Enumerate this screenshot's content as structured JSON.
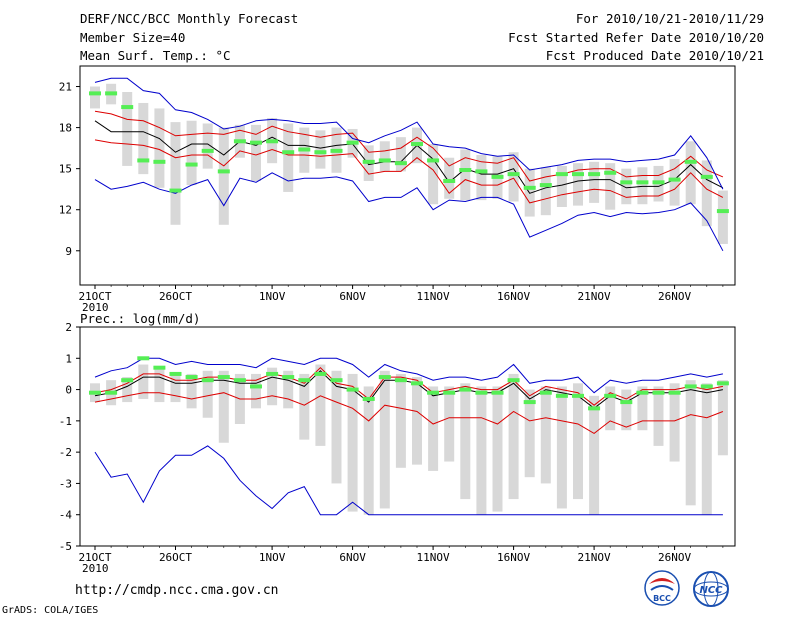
{
  "header": {
    "title": "DERF/NCC/BCC Monthly Forecast",
    "member_size": "Member Size=40",
    "variable": "Mean Surf. Temp.: °C",
    "period": "For 2010/10/21-2010/11/29",
    "start_date": "Fcst Started Refer Date 2010/10/20",
    "produced_date": "Fcst Produced Date 2010/10/21"
  },
  "footer": {
    "url": "http://cmdp.ncc.cma.gov.cn",
    "grads": "GrADS: COLA/IGES"
  },
  "logos": {
    "bcc": "BCC",
    "ncc": "NCC"
  },
  "colors": {
    "green": "#55ee55",
    "black": "#000000",
    "red": "#dd0000",
    "blue": "#0000cc",
    "box": "#d8d8d8"
  },
  "chart_data": [
    {
      "type": "line",
      "title": "Mean Surf. Temp.: °C",
      "xlabel": "",
      "ylabel": "",
      "x_ticks": [
        {
          "day": 0,
          "label": "21OCT"
        },
        {
          "day": 5,
          "label": "26OCT"
        },
        {
          "day": 11,
          "label": "1NOV"
        },
        {
          "day": 16,
          "label": "6NOV"
        },
        {
          "day": 21,
          "label": "11NOV"
        },
        {
          "day": 26,
          "label": "16NOV"
        },
        {
          "day": 31,
          "label": "21NOV"
        },
        {
          "day": 36,
          "label": "26NOV"
        }
      ],
      "year_label": "2010",
      "ylim": [
        6.5,
        22.5
      ],
      "y_ticks": [
        9,
        12,
        15,
        18,
        21
      ],
      "days": [
        0,
        1,
        2,
        3,
        4,
        5,
        6,
        7,
        8,
        9,
        10,
        11,
        12,
        13,
        14,
        15,
        16,
        17,
        18,
        19,
        20,
        21,
        22,
        23,
        24,
        25,
        26,
        27,
        28,
        29,
        30,
        31,
        32,
        33,
        34,
        35,
        36,
        37,
        38,
        39
      ],
      "series": [
        {
          "name": "ensemble mean",
          "color": "black",
          "values": [
            18.5,
            17.7,
            17.7,
            17.7,
            17.2,
            16.2,
            16.8,
            16.8,
            16.0,
            17.0,
            16.7,
            17.3,
            16.7,
            16.7,
            16.5,
            16.7,
            16.8,
            15.3,
            15.5,
            15.5,
            16.7,
            15.7,
            14.0,
            15.0,
            14.6,
            14.6,
            15.0,
            13.2,
            13.6,
            13.8,
            14.1,
            14.2,
            14.2,
            13.6,
            13.7,
            13.7,
            14.2,
            15.3,
            14.2,
            13.6
          ]
        },
        {
          "name": "upper range",
          "color": "red",
          "values": [
            19.2,
            19.0,
            18.6,
            18.5,
            18.0,
            17.4,
            17.5,
            17.6,
            17.5,
            17.8,
            17.5,
            18.1,
            17.7,
            17.5,
            17.3,
            17.5,
            17.6,
            16.2,
            16.3,
            16.5,
            17.3,
            16.5,
            15.2,
            15.8,
            15.5,
            15.4,
            15.8,
            14.1,
            14.4,
            14.6,
            14.9,
            15.0,
            15.0,
            14.4,
            14.5,
            14.5,
            15.0,
            15.9,
            14.9,
            14.4
          ]
        },
        {
          "name": "lower range",
          "color": "red",
          "values": [
            17.1,
            16.9,
            16.8,
            16.7,
            16.4,
            15.8,
            16.0,
            16.0,
            15.2,
            16.3,
            16.0,
            16.4,
            16.0,
            16.0,
            15.9,
            16.0,
            16.1,
            14.6,
            14.8,
            14.8,
            15.8,
            14.9,
            13.2,
            14.2,
            13.8,
            13.8,
            14.3,
            12.5,
            12.8,
            13.1,
            13.3,
            13.5,
            13.4,
            12.9,
            13.0,
            13.0,
            13.5,
            14.7,
            13.5,
            12.9
          ]
        },
        {
          "name": "max",
          "color": "blue",
          "values": [
            21.3,
            21.6,
            21.6,
            20.7,
            20.5,
            19.3,
            19.1,
            18.6,
            17.9,
            18.1,
            18.5,
            18.6,
            18.5,
            18.3,
            18.3,
            18.4,
            17.2,
            16.9,
            17.4,
            17.8,
            18.4,
            16.8,
            16.6,
            16.5,
            16.1,
            15.9,
            16.0,
            14.9,
            15.1,
            15.3,
            15.6,
            15.7,
            15.7,
            15.5,
            15.6,
            15.7,
            16.0,
            17.4,
            15.8,
            13.5
          ]
        },
        {
          "name": "min",
          "color": "blue",
          "values": [
            14.2,
            13.5,
            13.7,
            14.0,
            13.5,
            13.2,
            13.8,
            14.2,
            12.3,
            14.3,
            14.0,
            14.7,
            14.1,
            14.3,
            14.3,
            14.4,
            14.1,
            12.6,
            12.9,
            12.9,
            13.6,
            12.0,
            12.7,
            12.6,
            12.9,
            12.9,
            12.4,
            10.0,
            10.5,
            11.0,
            11.6,
            11.8,
            11.5,
            11.8,
            11.7,
            11.8,
            12.0,
            12.5,
            11.2,
            9.0
          ]
        },
        {
          "name": "observed",
          "color": "green",
          "values": [
            20.5,
            20.5,
            19.5,
            15.6,
            15.5,
            13.4,
            15.3,
            16.3,
            14.8,
            17.0,
            16.9,
            17.0,
            16.2,
            16.4,
            16.2,
            16.3,
            16.9,
            15.5,
            15.6,
            15.4,
            16.8,
            15.6,
            14.1,
            14.9,
            14.8,
            14.4,
            14.6,
            13.6,
            13.8,
            14.6,
            14.6,
            14.6,
            14.7,
            14.0,
            14.0,
            14.0,
            14.2,
            15.5,
            14.4,
            11.9
          ]
        }
      ],
      "box_upper": [
        21.0,
        21.2,
        20.6,
        19.8,
        19.4,
        18.4,
        18.5,
        18.3,
        18.0,
        18.2,
        18.2,
        18.7,
        18.3,
        18.0,
        17.8,
        18.0,
        17.9,
        16.7,
        17.0,
        17.3,
        18.0,
        16.8,
        15.8,
        16.4,
        16.0,
        15.9,
        16.2,
        15.0,
        15.1,
        15.2,
        15.4,
        15.5,
        15.4,
        15.0,
        15.1,
        15.2,
        15.7,
        17.0,
        15.6,
        13.4
      ],
      "box_lower": [
        19.4,
        19.7,
        15.2,
        14.6,
        13.6,
        10.9,
        13.8,
        15.0,
        10.9,
        15.8,
        14.1,
        15.4,
        13.3,
        14.7,
        15.0,
        14.7,
        15.8,
        14.1,
        14.8,
        14.8,
        15.4,
        12.4,
        12.8,
        12.7,
        12.7,
        12.8,
        12.6,
        11.5,
        11.6,
        12.2,
        12.3,
        12.5,
        12.0,
        12.4,
        12.4,
        12.6,
        12.3,
        12.4,
        10.8,
        9.5
      ]
    },
    {
      "type": "line",
      "title": "Prec.: log(mm/d)",
      "xlabel": "",
      "ylabel": "",
      "x_ticks": [
        {
          "day": 0,
          "label": "21OCT"
        },
        {
          "day": 5,
          "label": "26OCT"
        },
        {
          "day": 11,
          "label": "1NOV"
        },
        {
          "day": 16,
          "label": "6NOV"
        },
        {
          "day": 21,
          "label": "11NOV"
        },
        {
          "day": 26,
          "label": "16NOV"
        },
        {
          "day": 31,
          "label": "21NOV"
        },
        {
          "day": 36,
          "label": "26NOV"
        }
      ],
      "year_label": "2010",
      "ylim": [
        -5,
        2
      ],
      "y_ticks": [
        -5,
        -4,
        -3,
        -2,
        -1,
        0,
        1,
        2
      ],
      "days": [
        0,
        1,
        2,
        3,
        4,
        5,
        6,
        7,
        8,
        9,
        10,
        11,
        12,
        13,
        14,
        15,
        16,
        17,
        18,
        19,
        20,
        21,
        22,
        23,
        24,
        25,
        26,
        27,
        28,
        29,
        30,
        31,
        32,
        33,
        34,
        35,
        36,
        37,
        38,
        39
      ],
      "series": [
        {
          "name": "ensemble mean",
          "color": "black",
          "values": [
            -0.2,
            -0.1,
            0.1,
            0.4,
            0.4,
            0.2,
            0.2,
            0.3,
            0.3,
            0.2,
            0.2,
            0.4,
            0.3,
            0.1,
            0.6,
            0.1,
            0.0,
            -0.4,
            0.3,
            0.3,
            0.2,
            -0.2,
            -0.1,
            0.0,
            -0.1,
            -0.1,
            0.2,
            -0.3,
            0.0,
            -0.1,
            -0.2,
            -0.6,
            -0.2,
            -0.4,
            -0.1,
            -0.1,
            -0.1,
            0.0,
            -0.1,
            0.0
          ]
        },
        {
          "name": "upper range",
          "color": "red",
          "values": [
            -0.1,
            0.0,
            0.2,
            0.5,
            0.5,
            0.3,
            0.3,
            0.4,
            0.4,
            0.3,
            0.3,
            0.5,
            0.4,
            0.2,
            0.7,
            0.2,
            0.1,
            -0.3,
            0.4,
            0.4,
            0.3,
            -0.1,
            0.0,
            0.1,
            0.0,
            0.0,
            0.3,
            -0.2,
            0.1,
            0.0,
            -0.1,
            -0.5,
            -0.1,
            -0.3,
            0.0,
            0.0,
            0.0,
            0.1,
            0.0,
            0.1
          ]
        },
        {
          "name": "lower range",
          "color": "red",
          "values": [
            -0.4,
            -0.3,
            -0.2,
            -0.1,
            -0.1,
            -0.2,
            -0.3,
            -0.2,
            -0.1,
            -0.3,
            -0.3,
            -0.2,
            -0.3,
            -0.5,
            -0.2,
            -0.4,
            -0.6,
            -1.0,
            -0.5,
            -0.6,
            -0.7,
            -1.1,
            -0.9,
            -0.9,
            -0.9,
            -1.1,
            -0.7,
            -1.0,
            -0.9,
            -1.0,
            -1.1,
            -1.4,
            -1.0,
            -1.2,
            -1.0,
            -1.0,
            -1.0,
            -0.8,
            -0.9,
            -0.7
          ]
        },
        {
          "name": "max",
          "color": "blue",
          "values": [
            0.4,
            0.6,
            0.7,
            1.0,
            1.0,
            0.8,
            0.9,
            0.8,
            0.8,
            0.8,
            0.7,
            1.0,
            0.9,
            0.8,
            1.0,
            1.0,
            0.8,
            0.4,
            0.8,
            0.6,
            0.5,
            0.3,
            0.4,
            0.4,
            0.3,
            0.4,
            0.8,
            0.2,
            0.3,
            0.3,
            0.4,
            -0.1,
            0.3,
            0.2,
            0.3,
            0.3,
            0.4,
            0.5,
            0.4,
            0.5
          ]
        },
        {
          "name": "min",
          "color": "blue",
          "values": [
            -2.0,
            -2.8,
            -2.7,
            -3.6,
            -2.6,
            -2.1,
            -2.1,
            -1.8,
            -2.2,
            -2.9,
            -3.4,
            -3.8,
            -3.3,
            -3.1,
            -4.0,
            -4.0,
            -3.6,
            -4.0,
            -4.0,
            -4.0,
            -4.0,
            -4.0,
            -4.0,
            -4.0,
            -4.0,
            -4.0,
            -4.0,
            -4.0,
            -4.0,
            -4.0,
            -4.0,
            -4.0,
            -4.0,
            -4.0,
            -4.0,
            -4.0,
            -4.0,
            -4.0,
            -4.0,
            -4.0
          ]
        },
        {
          "name": "observed",
          "color": "green",
          "values": [
            -0.1,
            -0.1,
            0.3,
            1.0,
            0.7,
            0.5,
            0.4,
            0.3,
            0.4,
            0.3,
            0.1,
            0.5,
            0.4,
            0.3,
            0.5,
            0.3,
            0.0,
            -0.3,
            0.4,
            0.3,
            0.2,
            -0.1,
            -0.1,
            0.0,
            -0.1,
            -0.1,
            0.3,
            -0.4,
            -0.1,
            -0.2,
            -0.2,
            -0.6,
            -0.2,
            -0.4,
            -0.1,
            -0.1,
            -0.1,
            0.1,
            0.1,
            0.2
          ]
        }
      ],
      "box_upper": [
        0.2,
        0.3,
        0.4,
        0.8,
        0.7,
        0.5,
        0.5,
        0.6,
        0.6,
        0.5,
        0.5,
        0.7,
        0.6,
        0.5,
        0.8,
        0.6,
        0.5,
        0.1,
        0.6,
        0.5,
        0.4,
        0.1,
        0.1,
        0.2,
        0.1,
        0.1,
        0.5,
        0.0,
        0.1,
        0.1,
        0.2,
        -0.2,
        0.1,
        0.0,
        0.1,
        0.1,
        0.2,
        0.3,
        0.2,
        0.3
      ],
      "box_lower": [
        -0.4,
        -0.5,
        -0.4,
        -0.3,
        -0.4,
        -0.4,
        -0.6,
        -0.9,
        -1.7,
        -1.1,
        -0.6,
        -0.5,
        -0.6,
        -1.6,
        -1.8,
        -3.0,
        -3.9,
        -4.0,
        -3.8,
        -2.5,
        -2.4,
        -2.6,
        -2.3,
        -3.5,
        -4.0,
        -3.9,
        -3.5,
        -2.8,
        -3.0,
        -3.8,
        -3.5,
        -4.0,
        -1.3,
        -1.3,
        -1.3,
        -1.8,
        -2.3,
        -3.7,
        -4.0,
        -2.1
      ]
    }
  ]
}
